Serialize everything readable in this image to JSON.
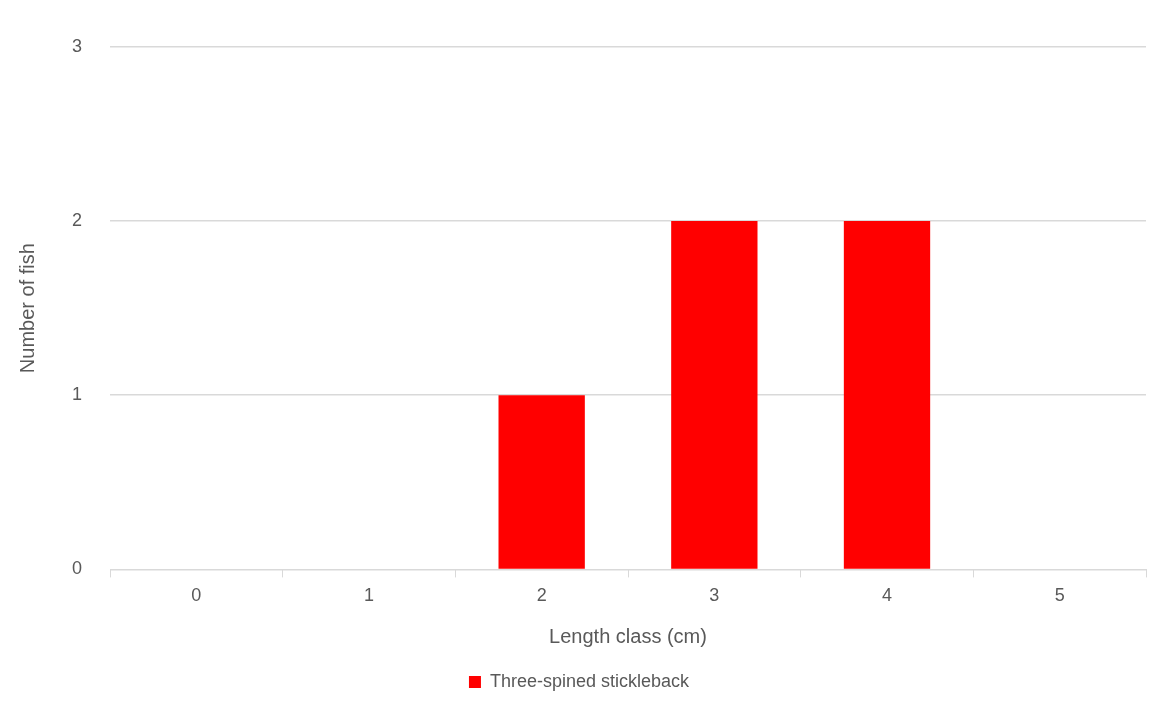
{
  "chart_data": {
    "type": "bar",
    "xlabel": "Length class (cm)",
    "ylabel": "Number of fish",
    "categories": [
      "0",
      "1",
      "2",
      "3",
      "4",
      "5"
    ],
    "series": [
      {
        "name": "Three-spined stickleback",
        "color": "#ff0000",
        "values": [
          0,
          0,
          1,
          2,
          2,
          0
        ]
      }
    ],
    "ylim": [
      0,
      3
    ],
    "yticks": [
      0,
      1,
      2,
      3
    ],
    "grid": "y",
    "legend": "bottom"
  }
}
